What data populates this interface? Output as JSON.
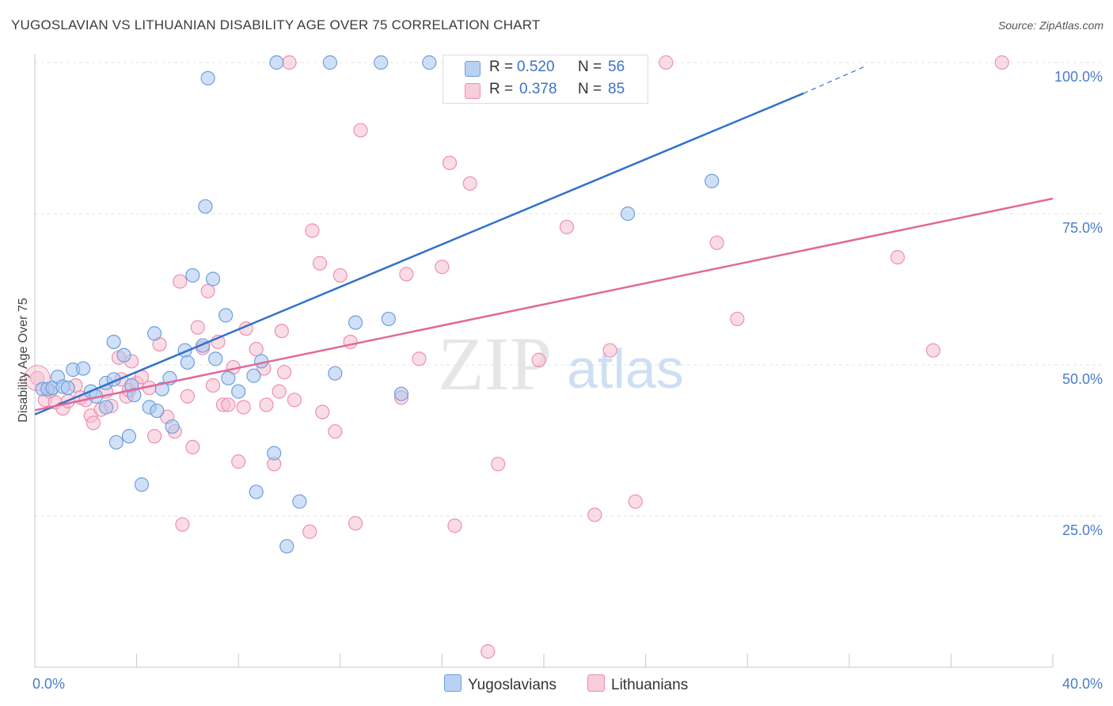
{
  "header": {
    "title": "YUGOSLAVIAN VS LITHUANIAN DISABILITY AGE OVER 75 CORRELATION CHART",
    "source": "Source: ZipAtlas.com"
  },
  "legend": {
    "rows": [
      {
        "r_label": "R =",
        "r_value": "0.520",
        "n_label": "N =",
        "n_value": "56"
      },
      {
        "r_label": "R =",
        "r_value": "0.378",
        "n_label": "N =",
        "n_value": "85"
      }
    ],
    "bottom": [
      "Yugoslavians",
      "Lithuanians"
    ]
  },
  "watermark": {
    "zip": "ZIP",
    "atlas": "atlas"
  },
  "colors": {
    "yugoslavians_fill": "#a9c6ef",
    "yugoslavians_stroke": "#6d9fe0",
    "yugoslavians_line": "#2f72cc",
    "lithuanians_fill": "#f6bfd0",
    "lithuanians_stroke": "#ef8fb0",
    "lithuanians_line": "#e0699a",
    "accent_text": "#3b73c8"
  },
  "chart_data": {
    "type": "scatter",
    "title": "YUGOSLAVIAN VS LITHUANIAN DISABILITY AGE OVER 75 CORRELATION CHART",
    "xlabel": "",
    "ylabel": "Disability Age Over 75",
    "xlim": [
      0,
      40
    ],
    "ylim": [
      0,
      100
    ],
    "x_ticks": [
      "0.0%",
      "40.0%"
    ],
    "y_ticks": [
      "25.0%",
      "50.0%",
      "75.0%",
      "100.0%"
    ],
    "y_tick_values": [
      25,
      50,
      75,
      100
    ],
    "grid": true,
    "legend_position": "top-center",
    "series": [
      {
        "name": "Yugoslavians",
        "r": 0.52,
        "n": 56,
        "trend": {
          "x0": 0,
          "y0": 41.8,
          "x1": 30.2,
          "y1": 94.9,
          "dash_to_x": 32.7,
          "dash_to_y": 99.5
        },
        "points": [
          [
            0.3,
            46.0
          ],
          [
            0.5,
            46.0
          ],
          [
            0.7,
            46.2
          ],
          [
            0.9,
            48.0
          ],
          [
            1.1,
            46.4
          ],
          [
            1.5,
            49.2
          ],
          [
            1.3,
            46.2
          ],
          [
            1.9,
            49.4
          ],
          [
            2.2,
            45.6
          ],
          [
            2.4,
            44.8
          ],
          [
            2.8,
            43.0
          ],
          [
            2.8,
            47.0
          ],
          [
            3.1,
            47.6
          ],
          [
            3.1,
            53.8
          ],
          [
            3.2,
            37.2
          ],
          [
            3.5,
            51.6
          ],
          [
            3.7,
            38.2
          ],
          [
            3.8,
            46.6
          ],
          [
            3.9,
            45.0
          ],
          [
            4.2,
            30.2
          ],
          [
            4.5,
            43.0
          ],
          [
            4.7,
            55.2
          ],
          [
            4.8,
            42.4
          ],
          [
            5.0,
            46.0
          ],
          [
            5.3,
            47.8
          ],
          [
            5.4,
            39.8
          ],
          [
            5.9,
            52.4
          ],
          [
            6.0,
            50.4
          ],
          [
            6.2,
            64.8
          ],
          [
            6.6,
            53.2
          ],
          [
            6.7,
            76.2
          ],
          [
            6.8,
            97.4
          ],
          [
            7.0,
            64.2
          ],
          [
            7.1,
            51.0
          ],
          [
            7.5,
            58.2
          ],
          [
            7.6,
            47.8
          ],
          [
            8.0,
            45.6
          ],
          [
            8.6,
            48.2
          ],
          [
            8.7,
            29.0
          ],
          [
            8.9,
            50.6
          ],
          [
            9.4,
            35.4
          ],
          [
            9.5,
            100
          ],
          [
            9.9,
            20.0
          ],
          [
            10.4,
            27.4
          ],
          [
            11.6,
            100
          ],
          [
            11.8,
            48.6
          ],
          [
            12.6,
            57.0
          ],
          [
            13.6,
            100
          ],
          [
            13.9,
            57.6
          ],
          [
            14.4,
            45.2
          ],
          [
            15.5,
            100
          ],
          [
            23.3,
            75.0
          ],
          [
            26.6,
            80.4
          ]
        ]
      },
      {
        "name": "Lithuanians",
        "r": 0.378,
        "n": 85,
        "trend": {
          "x0": 0,
          "y0": 42.5,
          "x1": 40,
          "y1": 77.5
        },
        "points": [
          [
            0.1,
            47.8
          ],
          [
            0.4,
            44.2
          ],
          [
            0.6,
            45.6
          ],
          [
            0.8,
            43.8
          ],
          [
            1.1,
            42.8
          ],
          [
            1.3,
            44.0
          ],
          [
            1.6,
            46.6
          ],
          [
            1.8,
            44.6
          ],
          [
            2.0,
            44.2
          ],
          [
            2.2,
            41.6
          ],
          [
            2.3,
            40.4
          ],
          [
            2.6,
            42.6
          ],
          [
            2.8,
            45.6
          ],
          [
            3.0,
            43.2
          ],
          [
            3.3,
            51.2
          ],
          [
            3.4,
            47.6
          ],
          [
            3.6,
            44.8
          ],
          [
            3.7,
            45.8
          ],
          [
            3.8,
            50.6
          ],
          [
            4.0,
            47.0
          ],
          [
            4.2,
            48.0
          ],
          [
            4.5,
            46.2
          ],
          [
            4.7,
            38.2
          ],
          [
            4.9,
            53.4
          ],
          [
            5.2,
            41.4
          ],
          [
            5.5,
            39.0
          ],
          [
            5.7,
            63.8
          ],
          [
            5.8,
            23.6
          ],
          [
            6.0,
            44.8
          ],
          [
            6.2,
            36.4
          ],
          [
            6.4,
            56.2
          ],
          [
            6.6,
            52.8
          ],
          [
            6.8,
            62.2
          ],
          [
            7.0,
            46.6
          ],
          [
            7.2,
            53.8
          ],
          [
            7.4,
            43.4
          ],
          [
            7.6,
            43.4
          ],
          [
            7.8,
            49.6
          ],
          [
            8.0,
            34.0
          ],
          [
            8.2,
            43.0
          ],
          [
            8.3,
            56.0
          ],
          [
            8.7,
            52.6
          ],
          [
            9.0,
            49.4
          ],
          [
            9.1,
            43.4
          ],
          [
            9.4,
            33.6
          ],
          [
            9.6,
            45.6
          ],
          [
            9.7,
            55.6
          ],
          [
            9.8,
            48.8
          ],
          [
            10.0,
            100
          ],
          [
            10.2,
            44.2
          ],
          [
            10.8,
            22.4
          ],
          [
            10.9,
            72.2
          ],
          [
            11.2,
            66.8
          ],
          [
            11.3,
            42.2
          ],
          [
            11.8,
            39.0
          ],
          [
            12.0,
            64.8
          ],
          [
            12.4,
            53.8
          ],
          [
            12.6,
            23.8
          ],
          [
            12.8,
            88.8
          ],
          [
            14.4,
            44.6
          ],
          [
            14.6,
            65.0
          ],
          [
            15.1,
            51.0
          ],
          [
            16.0,
            66.2
          ],
          [
            16.3,
            83.4
          ],
          [
            16.5,
            23.4
          ],
          [
            17.1,
            80.0
          ],
          [
            17.8,
            2.6
          ],
          [
            18.2,
            33.6
          ],
          [
            19.8,
            50.8
          ],
          [
            20.8,
            100
          ],
          [
            20.9,
            72.8
          ],
          [
            22.0,
            25.2
          ],
          [
            22.6,
            52.4
          ],
          [
            23.6,
            27.4
          ],
          [
            24.8,
            100
          ],
          [
            26.8,
            70.2
          ],
          [
            27.6,
            57.6
          ],
          [
            33.9,
            67.8
          ],
          [
            35.3,
            52.4
          ],
          [
            38.0,
            100
          ]
        ]
      }
    ]
  }
}
